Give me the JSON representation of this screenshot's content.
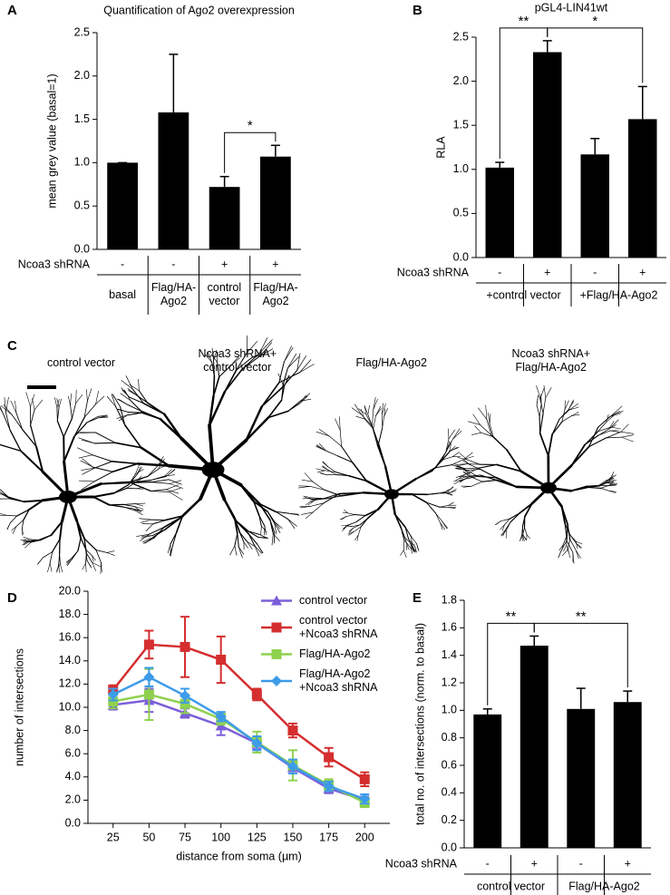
{
  "chart_data": [
    {
      "type": "bar",
      "panel": "A",
      "title": "Quantification of Ago2 overexpression",
      "y_label": "mean grey value (basal=1)",
      "categories": [
        "basal",
        "Flag/HA-\nAgo2",
        "control\nvector",
        "Flag/HA-\nAgo2"
      ],
      "values": [
        1.0,
        1.58,
        0.72,
        1.07
      ],
      "errors": [
        0,
        0.67,
        0.12,
        0.13
      ],
      "color": "#000000",
      "treatment_label": "Ncoa3 shRNA",
      "treatment": [
        "-",
        "-",
        "+",
        "+"
      ],
      "significance": [
        {
          "label": "*",
          "from": 2,
          "to": 3
        }
      ],
      "ylim": [
        0,
        2.5
      ],
      "yticks": [
        {
          "value": 0,
          "label": "0.0"
        },
        0.5,
        {
          "value": 1,
          "label": "1.0"
        },
        1.5,
        {
          "value": 2,
          "label": "2.0"
        },
        2.5
      ]
    },
    {
      "type": "bar",
      "panel": "B",
      "title": "pGL4-LIN41wt",
      "y_label": "RLA",
      "values": [
        1.02,
        2.33,
        1.17,
        1.57
      ],
      "errors": [
        0.06,
        0.13,
        0.18,
        0.37
      ],
      "color": "#000000",
      "treatment_label": "Ncoa3 shRNA",
      "treatment": [
        "-",
        "+",
        "-",
        "+"
      ],
      "groups": [
        "+control vector",
        "+Flag/HA-Ago2"
      ],
      "significance": [
        {
          "label": "**",
          "from": 0,
          "to": 1
        },
        {
          "label": "*",
          "from": 1,
          "to": 3
        }
      ],
      "ylim": [
        0,
        2.5
      ],
      "yticks": [
        {
          "value": 0,
          "label": "0.0"
        },
        0.5,
        {
          "value": 1,
          "label": "1.0"
        },
        1.5,
        {
          "value": 2,
          "label": "2.0"
        },
        2.5
      ]
    },
    {
      "type": "line",
      "panel": "D",
      "x_label": "distance from soma (µm)",
      "y_label": "number of intersections",
      "x": [
        25,
        50,
        75,
        100,
        125,
        150,
        175,
        200
      ],
      "series": [
        {
          "name": "control vector",
          "color": "#7b5fd9",
          "marker": "triangle",
          "values": [
            10.2,
            10.6,
            9.5,
            8.4,
            6.9,
            4.8,
            3.0,
            2.0
          ],
          "errors": [
            0.4,
            1.0,
            0.4,
            0.8,
            0.5,
            0.5,
            0.4,
            0.3
          ]
        },
        {
          "name": "control vector\n+Ncoa3 shRNA",
          "color": "#d42e2e",
          "marker": "square",
          "values": [
            11.5,
            15.4,
            15.2,
            14.1,
            11.1,
            8.0,
            5.7,
            3.8
          ],
          "errors": [
            0.4,
            1.2,
            2.6,
            2.0,
            0.5,
            0.6,
            0.8,
            0.6
          ]
        },
        {
          "name": "Flag/HA-Ago2",
          "color": "#8fd14f",
          "marker": "square",
          "values": [
            10.5,
            11.1,
            10.3,
            9.0,
            7.0,
            5.0,
            3.3,
            1.8
          ],
          "errors": [
            0.6,
            2.2,
            0.8,
            0.5,
            0.9,
            1.3,
            0.5,
            0.4
          ]
        },
        {
          "name": "Flag/HA-Ago2\n+Ncoa3 shRNA",
          "color": "#3d9be9",
          "marker": "diamond",
          "values": [
            11.1,
            12.6,
            11.0,
            9.2,
            6.9,
            4.9,
            3.2,
            2.1
          ],
          "errors": [
            0.5,
            0.8,
            0.6,
            0.4,
            0.6,
            0.6,
            0.4,
            0.4
          ]
        }
      ],
      "xlim": [
        7.5,
        217.5
      ],
      "xticks": [
        25,
        50,
        75,
        100,
        125,
        150,
        175,
        200
      ],
      "ylim": [
        0,
        20
      ],
      "yticks": [
        {
          "value": 0,
          "label": "0.0"
        },
        {
          "value": 2,
          "label": "2.0"
        },
        {
          "value": 4,
          "label": "4.0"
        },
        {
          "value": 6,
          "label": "6.0"
        },
        {
          "value": 8,
          "label": "8.0"
        },
        {
          "value": 10,
          "label": "10.0"
        },
        {
          "value": 12,
          "label": "12.0"
        },
        {
          "value": 14,
          "label": "14.0"
        },
        {
          "value": 16,
          "label": "16.0"
        },
        {
          "value": 18,
          "label": "18.0"
        },
        {
          "value": 20,
          "label": "20.0"
        }
      ]
    },
    {
      "type": "bar",
      "panel": "E",
      "y_label": "total no. of intersections (norm. to basal)",
      "values": [
        0.97,
        1.47,
        1.01,
        1.06
      ],
      "errors": [
        0.04,
        0.07,
        0.15,
        0.08
      ],
      "color": "#000000",
      "treatment_label": "Ncoa3 shRNA",
      "treatment": [
        "-",
        "+",
        "-",
        "+"
      ],
      "groups": [
        "control vector",
        "Flag/HA-Ago2"
      ],
      "significance": [
        {
          "label": "**",
          "from": 0,
          "to": 1
        },
        {
          "label": "**",
          "from": 1,
          "to": 3
        }
      ],
      "ylim": [
        0,
        1.8
      ],
      "yticks": [
        {
          "value": 0,
          "label": "0.0"
        },
        {
          "value": 0.2,
          "label": "0.2"
        },
        {
          "value": 0.4,
          "label": "0.4"
        },
        {
          "value": 0.6,
          "label": "0.6"
        },
        {
          "value": 0.8,
          "label": "0.8"
        },
        {
          "value": 1,
          "label": "1.0"
        },
        {
          "value": 1.2,
          "label": "1.2"
        },
        {
          "value": 1.4,
          "label": "1.4"
        },
        {
          "value": 1.6,
          "label": "1.6"
        },
        {
          "value": 1.8,
          "label": "1.8"
        }
      ]
    }
  ],
  "images": {
    "panel": "C",
    "labels": [
      "control vector",
      "Ncoa3 shRNA+\ncontrol vector",
      "Flag/HA-Ago2",
      "Ncoa3 shRNA+\nFlag/HA-Ago2"
    ]
  }
}
